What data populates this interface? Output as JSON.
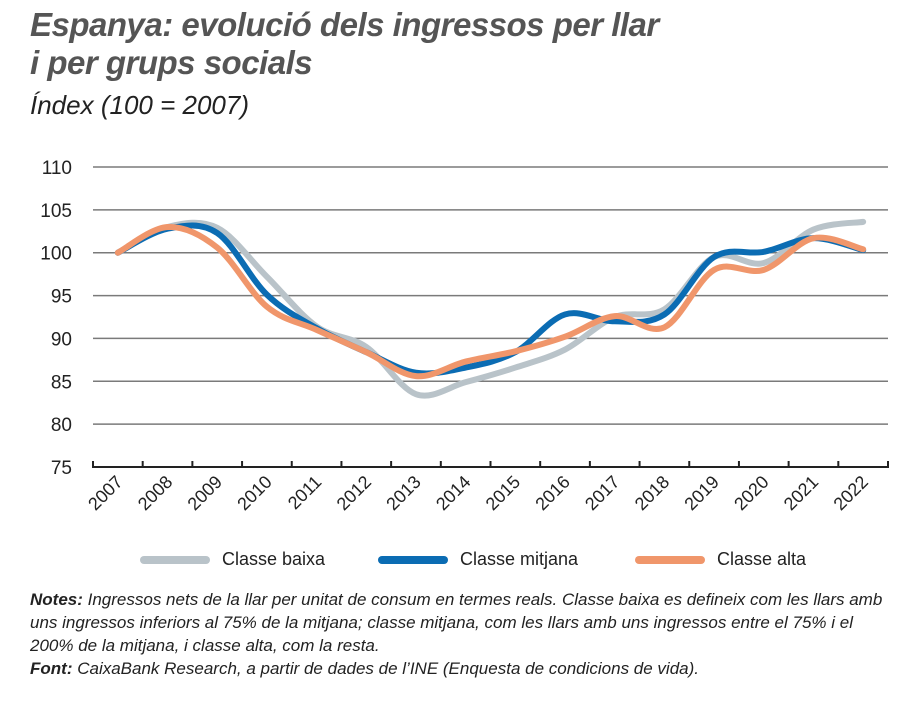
{
  "title_line1": "Espanya: evolució dels ingressos per llar",
  "title_line2": "i per grups socials",
  "subtitle": "Índex (100 = 2007)",
  "chart_data": {
    "type": "line",
    "title": "Espanya: evolució dels ingressos per llar i per grups socials",
    "subtitle": "Índex (100 = 2007)",
    "categories": [
      "2007",
      "2008",
      "2009",
      "2010",
      "2011",
      "2012",
      "2013",
      "2014",
      "2015",
      "2016",
      "2017",
      "2018",
      "2019",
      "2020",
      "2021",
      "2022"
    ],
    "yticks": [
      75,
      80,
      85,
      90,
      95,
      100,
      105,
      110
    ],
    "ylim": [
      75,
      110
    ],
    "grid": true,
    "legend_position": "bottom",
    "series": [
      {
        "name": "Classe baixa",
        "color": "#b9c3c9",
        "values": [
          100,
          103,
          102.9,
          97.2,
          91.4,
          89,
          83.5,
          84.9,
          86.6,
          88.7,
          92.5,
          93.4,
          99.5,
          98.8,
          102.7,
          103.6
        ]
      },
      {
        "name": "Classe mitjana",
        "color": "#0b6cb3",
        "values": [
          100,
          102.8,
          102.3,
          95.1,
          91.2,
          88.4,
          86,
          86.6,
          88.4,
          92.8,
          92,
          92.8,
          99.5,
          100.1,
          101.7,
          100.3
        ]
      },
      {
        "name": "Classe alta",
        "color": "#f0966b",
        "values": [
          100,
          103,
          100.6,
          93.7,
          91,
          88.4,
          85.6,
          87.3,
          88.5,
          90.2,
          92.6,
          91.3,
          98,
          98,
          101.7,
          100.4
        ]
      }
    ]
  },
  "notes": {
    "notes_label": "Notes:",
    "notes_text": " Ingressos nets de la llar per unitat de consum en termes reals. Classe baixa es defineix com les llars amb uns ingressos inferiors al 75% de la mitjana; classe mitjana, com les llars amb uns ingressos entre el 75% i el 200% de la mitjana, i classe alta, com la resta.",
    "source_label": "Font:",
    "source_text": " CaixaBank Research, a partir de dades de l’INE (Enquesta de condicions de vida)."
  }
}
